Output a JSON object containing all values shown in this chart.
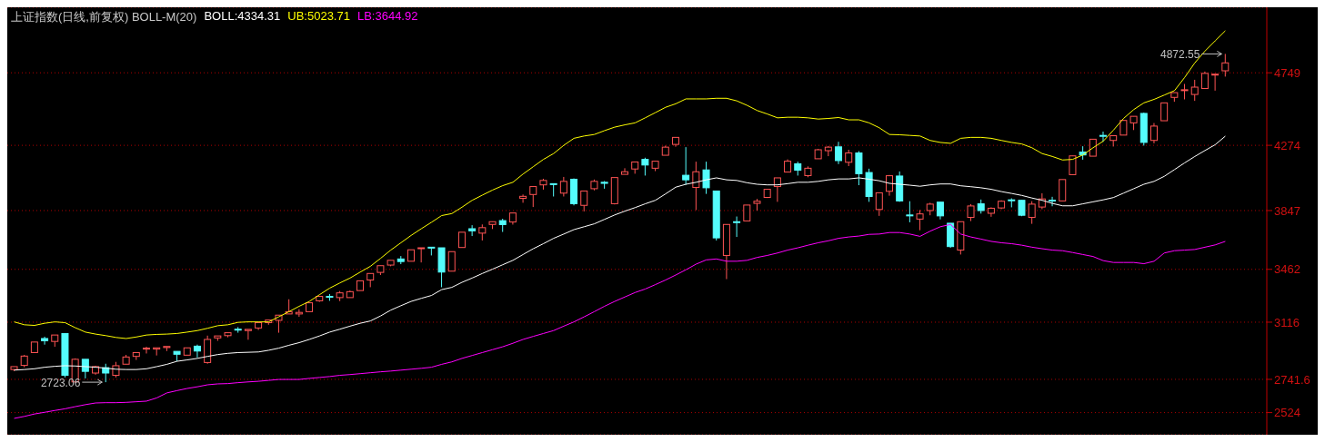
{
  "chart_data": {
    "type": "candlestick",
    "title": "上证指数(日线,前复权) BOLL-M(20)",
    "categories": [
      null,
      null,
      null,
      null,
      null,
      null,
      null,
      null,
      null,
      null,
      null,
      null,
      null,
      null,
      null,
      null,
      null,
      null,
      null,
      null,
      null,
      null,
      null,
      null,
      null,
      null,
      null,
      null,
      null,
      null,
      null,
      null,
      null,
      null,
      null,
      null,
      null,
      null,
      null,
      null,
      null,
      null,
      null,
      null,
      null,
      null,
      null,
      null,
      null,
      null,
      null,
      null,
      null,
      null,
      null,
      null,
      null,
      null,
      null,
      null,
      null,
      null,
      null,
      null,
      null,
      null,
      null,
      null,
      null,
      null,
      null,
      null,
      null,
      null,
      null,
      null,
      null,
      null,
      null,
      null,
      null,
      null,
      null,
      null,
      null,
      null,
      null,
      null,
      null,
      null,
      null,
      null,
      null,
      null,
      null,
      null,
      null,
      null,
      null,
      null,
      null,
      null,
      null,
      null,
      null,
      null,
      null,
      null,
      null,
      null,
      null,
      null,
      null,
      null,
      null,
      null,
      null,
      null,
      null,
      null
    ],
    "ohlc": [
      [
        2806,
        2825,
        2796,
        2825
      ],
      [
        2833,
        2902,
        2821,
        2894
      ],
      [
        2917,
        2986,
        2917,
        2986
      ],
      [
        3009,
        3021,
        2969,
        2994
      ],
      [
        2990,
        3032,
        2955,
        3032
      ],
      [
        3042,
        3042,
        2754,
        2768
      ],
      [
        2725,
        2879,
        2725,
        2873
      ],
      [
        2873,
        2873,
        2748,
        2794
      ],
      [
        2783,
        2831,
        2772,
        2825
      ],
      [
        2818,
        2844,
        2723.06,
        2783
      ],
      [
        2768,
        2856,
        2754,
        2831
      ],
      [
        2841,
        2902,
        2841,
        2888
      ],
      [
        2892,
        2917,
        2869,
        2917
      ],
      [
        2942,
        2955,
        2911,
        2946
      ],
      [
        2940,
        2948,
        2898,
        2948
      ],
      [
        2950,
        2957,
        2927,
        2957
      ],
      [
        2925,
        2925,
        2860,
        2906
      ],
      [
        2900,
        2948,
        2900,
        2948
      ],
      [
        2959,
        2969,
        2885,
        2927
      ],
      [
        2852,
        3028,
        2844,
        3003
      ],
      [
        3013,
        3026,
        2994,
        3026
      ],
      [
        3028,
        3047,
        3017,
        3047
      ],
      [
        3070,
        3084,
        3047,
        3065
      ],
      [
        3061,
        3069,
        3001,
        3069
      ],
      [
        3078,
        3113,
        3065,
        3113
      ],
      [
        3113,
        3130,
        3099,
        3130
      ],
      [
        3128,
        3162,
        3047,
        3162
      ],
      [
        3170,
        3266,
        3170,
        3185
      ],
      [
        3170,
        3201,
        3151,
        3180
      ],
      [
        3185,
        3243,
        3185,
        3243
      ],
      [
        3256,
        3285,
        3249,
        3285
      ],
      [
        3285,
        3300,
        3256,
        3281
      ],
      [
        3277,
        3320,
        3254,
        3308
      ],
      [
        3277,
        3323,
        3277,
        3316
      ],
      [
        3323,
        3387,
        3323,
        3387
      ],
      [
        3392,
        3435,
        3345,
        3435
      ],
      [
        3442,
        3486,
        3425,
        3486
      ],
      [
        3490,
        3521,
        3482,
        3521
      ],
      [
        3530,
        3549,
        3496,
        3513
      ],
      [
        3515,
        3590,
        3515,
        3590
      ],
      [
        3597,
        3603,
        3507,
        3603
      ],
      [
        3607,
        3607,
        3553,
        3603
      ],
      [
        3603,
        3603,
        3345,
        3444
      ],
      [
        3450,
        3578,
        3450,
        3578
      ],
      [
        3605,
        3705,
        3605,
        3705
      ],
      [
        3728,
        3751,
        3680,
        3714
      ],
      [
        3699,
        3756,
        3651,
        3735
      ],
      [
        3756,
        3774,
        3726,
        3774
      ],
      [
        3781,
        3793,
        3707,
        3755
      ],
      [
        3772,
        3831,
        3755,
        3831
      ],
      [
        3927,
        3952,
        3898,
        3940
      ],
      [
        3952,
        4004,
        3870,
        4004
      ],
      [
        4015,
        4055,
        3984,
        4044
      ],
      [
        4023,
        4023,
        3939,
        4019
      ],
      [
        3961,
        4067,
        3939,
        4038
      ],
      [
        4052,
        4057,
        3881,
        3892
      ],
      [
        3881,
        3975,
        3841,
        3975
      ],
      [
        3990,
        4050,
        3979,
        4038
      ],
      [
        4032,
        4040,
        3990,
        4025
      ],
      [
        3892,
        4063,
        3887,
        4063
      ],
      [
        4084,
        4124,
        4084,
        4101
      ],
      [
        4119,
        4165,
        4088,
        4165
      ],
      [
        4182,
        4193,
        4076,
        4145
      ],
      [
        4124,
        4170,
        4105,
        4170
      ],
      [
        4209,
        4272,
        4209,
        4262
      ],
      [
        4280,
        4326,
        4265,
        4326
      ],
      [
        4078,
        4262,
        4015,
        4048
      ],
      [
        3998,
        4167,
        3850,
        4101
      ],
      [
        4113,
        4167,
        3956,
        3996
      ],
      [
        3975,
        3975,
        3651,
        3668
      ],
      [
        3553,
        3756,
        3398,
        3756
      ],
      [
        3774,
        3808,
        3674,
        3770
      ],
      [
        3779,
        3883,
        3779,
        3883
      ],
      [
        3894,
        3923,
        3847,
        3908
      ],
      [
        3933,
        3986,
        3929,
        3986
      ],
      [
        4004,
        4061,
        3904,
        4061
      ],
      [
        4099,
        4182,
        4099,
        4170
      ],
      [
        4153,
        4167,
        4076,
        4111
      ],
      [
        4076,
        4136,
        4065,
        4124
      ],
      [
        4186,
        4251,
        4186,
        4245
      ],
      [
        4239,
        4270,
        4203,
        4262
      ],
      [
        4264,
        4297,
        4151,
        4174
      ],
      [
        4163,
        4245,
        4138,
        4224
      ],
      [
        4224,
        4236,
        4013,
        4088
      ],
      [
        4096,
        4121,
        3904,
        3939
      ],
      [
        3854,
        3963,
        3812,
        3963
      ],
      [
        3973,
        4080,
        3944,
        4075
      ],
      [
        4073,
        4103,
        3904,
        3910
      ],
      [
        3818,
        3908,
        3770,
        3814
      ],
      [
        3791,
        3850,
        3718,
        3825
      ],
      [
        3847,
        3898,
        3816,
        3889
      ],
      [
        3902,
        3902,
        3789,
        3812
      ],
      [
        3764,
        3764,
        3603,
        3611
      ],
      [
        3588,
        3774,
        3559,
        3774
      ],
      [
        3802,
        3889,
        3778,
        3877
      ],
      [
        3891,
        3919,
        3827,
        3847
      ],
      [
        3829,
        3868,
        3806,
        3862
      ],
      [
        3864,
        3914,
        3856,
        3908
      ],
      [
        3917,
        3927,
        3868,
        3914
      ],
      [
        3914,
        3914,
        3810,
        3816
      ],
      [
        3802,
        3908,
        3760,
        3889
      ],
      [
        3870,
        3960,
        3856,
        3923
      ],
      [
        3915,
        3937,
        3875,
        3910
      ],
      [
        3910,
        4050,
        3910,
        4050
      ],
      [
        4082,
        4205,
        4082,
        4205
      ],
      [
        4230,
        4268,
        4180,
        4211
      ],
      [
        4203,
        4314,
        4203,
        4314
      ],
      [
        4339,
        4364,
        4297,
        4335
      ],
      [
        4306,
        4337,
        4266,
        4337
      ],
      [
        4341,
        4437,
        4341,
        4437
      ],
      [
        4421,
        4464,
        4374,
        4464
      ],
      [
        4483,
        4488,
        4272,
        4293
      ],
      [
        4306,
        4420,
        4287,
        4400
      ],
      [
        4435,
        4552,
        4435,
        4552
      ],
      [
        4588,
        4619,
        4559,
        4619
      ],
      [
        4634,
        4676,
        4575,
        4638
      ],
      [
        4607,
        4703,
        4565,
        4655
      ],
      [
        4646,
        4757,
        4646,
        4745
      ],
      [
        4736,
        4740,
        4632,
        4740
      ],
      [
        4762,
        4872.55,
        4724,
        4814
      ]
    ],
    "colors": [
      "#ff5454",
      "#ff5454",
      "#ff5454",
      "#54fcfc",
      "#ff5454",
      "#54fcfc",
      "#ff5454",
      "#54fcfc",
      "#ff5454",
      "#54fcfc",
      "#ff5454",
      "#ff5454",
      "#ff5454",
      "#ff5454",
      "#ff5454",
      "#ff5454",
      "#54fcfc",
      "#ff5454",
      "#54fcfc",
      "#ff5454",
      "#ff5454",
      "#ff5454",
      "#54fcfc",
      "#ff5454",
      "#ff5454",
      "#ff5454",
      "#ff5454",
      "#ff5454",
      "#ff5454",
      "#ff5454",
      "#ff5454",
      "#54fcfc",
      "#ff5454",
      "#ff5454",
      "#ff5454",
      "#ff5454",
      "#ff5454",
      "#ff5454",
      "#54fcfc",
      "#ff5454",
      "#ff5454",
      "#54fcfc",
      "#54fcfc",
      "#ff5454",
      "#ff5454",
      "#54fcfc",
      "#ff5454",
      "#ff5454",
      "#54fcfc",
      "#ff5454",
      "#ff5454",
      "#ff5454",
      "#ff5454",
      "#54fcfc",
      "#ff5454",
      "#54fcfc",
      "#ff5454",
      "#ff5454",
      "#54fcfc",
      "#ff5454",
      "#ff5454",
      "#ff5454",
      "#54fcfc",
      "#ff5454",
      "#ff5454",
      "#ff5454",
      "#54fcfc",
      "#ff5454",
      "#54fcfc",
      "#54fcfc",
      "#ff5454",
      "#54fcfc",
      "#ff5454",
      "#ff5454",
      "#ff5454",
      "#ff5454",
      "#ff5454",
      "#54fcfc",
      "#ff5454",
      "#ff5454",
      "#ff5454",
      "#54fcfc",
      "#ff5454",
      "#54fcfc",
      "#54fcfc",
      "#ff5454",
      "#ff5454",
      "#54fcfc",
      "#54fcfc",
      "#ff5454",
      "#ff5454",
      "#54fcfc",
      "#54fcfc",
      "#ff5454",
      "#ff5454",
      "#54fcfc",
      "#ff5454",
      "#ff5454",
      "#54fcfc",
      "#54fcfc",
      "#ff5454",
      "#ff5454",
      "#54fcfc",
      "#ff5454",
      "#ff5454",
      "#54fcfc",
      "#ff5454",
      "#54fcfc",
      "#ff5454",
      "#ff5454",
      "#ff5454",
      "#54fcfc",
      "#ff5454",
      "#ff5454",
      "#ff5454",
      "#ff5454",
      "#ff5454",
      "#ff5454",
      "#ff5454",
      "#ff5454"
    ],
    "series": [
      {
        "type": "line",
        "name": "BOLL:4334.31",
        "color": "#ffffff",
        "values": [
          2802,
          2806,
          2811,
          2821,
          2827,
          2831,
          2829,
          2825,
          2821,
          2815,
          2808,
          2806,
          2806,
          2811,
          2825,
          2840,
          2860,
          2869,
          2879,
          2892,
          2904,
          2912,
          2917,
          2919,
          2921,
          2932,
          2946,
          2965,
          2982,
          3003,
          3026,
          3051,
          3070,
          3090,
          3109,
          3124,
          3157,
          3195,
          3224,
          3252,
          3272,
          3291,
          3329,
          3344,
          3377,
          3405,
          3435,
          3463,
          3492,
          3521,
          3559,
          3597,
          3630,
          3665,
          3693,
          3722,
          3741,
          3760,
          3789,
          3818,
          3843,
          3866,
          3891,
          3914,
          3956,
          4000,
          4019,
          4032,
          4048,
          4061,
          4048,
          4044,
          4029,
          4019,
          4015,
          4015,
          4023,
          4032,
          4032,
          4038,
          4048,
          4054,
          4054,
          4061,
          4052,
          4042,
          4025,
          4019,
          4013,
          4006,
          4015,
          4021,
          4021,
          4009,
          4003,
          3996,
          3986,
          3971,
          3959,
          3946,
          3929,
          3914,
          3894,
          3878,
          3878,
          3891,
          3904,
          3917,
          3932,
          3961,
          3990,
          4019,
          4038,
          4071,
          4115,
          4159,
          4201,
          4240,
          4278,
          4334
        ]
      },
      {
        "type": "line",
        "name": "UB:5023.71",
        "color": "#ffff00",
        "values": [
          3118,
          3099,
          3095,
          3109,
          3118,
          3113,
          3080,
          3051,
          3038,
          3028,
          3016,
          3009,
          3019,
          3032,
          3036,
          3038,
          3042,
          3051,
          3061,
          3076,
          3093,
          3099,
          3115,
          3118,
          3118,
          3118,
          3151,
          3185,
          3220,
          3252,
          3296,
          3339,
          3373,
          3405,
          3444,
          3482,
          3534,
          3588,
          3636,
          3684,
          3728,
          3770,
          3814,
          3827,
          3869,
          3914,
          3948,
          3981,
          4010,
          4032,
          4086,
          4134,
          4182,
          4220,
          4274,
          4320,
          4335,
          4345,
          4370,
          4393,
          4408,
          4421,
          4454,
          4488,
          4523,
          4546,
          4578,
          4578,
          4578,
          4582,
          4582,
          4565,
          4536,
          4502,
          4479,
          4454,
          4458,
          4458,
          4454,
          4446,
          4450,
          4456,
          4441,
          4441,
          4421,
          4389,
          4345,
          4343,
          4339,
          4335,
          4306,
          4293,
          4287,
          4320,
          4326,
          4326,
          4320,
          4306,
          4293,
          4283,
          4258,
          4220,
          4201,
          4178,
          4182,
          4211,
          4258,
          4301,
          4373,
          4450,
          4508,
          4552,
          4575,
          4603,
          4632,
          4718,
          4814,
          4891,
          4958,
          5024
        ]
      },
      {
        "type": "line",
        "name": "LB:3644.92",
        "color": "#ff00ff",
        "values": [
          2486,
          2499,
          2515,
          2526,
          2538,
          2549,
          2563,
          2576,
          2587,
          2589,
          2589,
          2591,
          2595,
          2599,
          2620,
          2653,
          2668,
          2682,
          2693,
          2706,
          2712,
          2714,
          2720,
          2725,
          2729,
          2735,
          2741,
          2741,
          2741,
          2748,
          2754,
          2760,
          2768,
          2773,
          2779,
          2785,
          2791,
          2796,
          2802,
          2808,
          2814,
          2821,
          2840,
          2856,
          2879,
          2898,
          2917,
          2936,
          2955,
          2978,
          3003,
          3023,
          3042,
          3061,
          3090,
          3118,
          3151,
          3185,
          3220,
          3252,
          3281,
          3310,
          3333,
          3362,
          3392,
          3425,
          3459,
          3496,
          3524,
          3530,
          3515,
          3515,
          3521,
          3540,
          3553,
          3569,
          3588,
          3603,
          3620,
          3636,
          3649,
          3665,
          3674,
          3680,
          3691,
          3693,
          3703,
          3703,
          3693,
          3678,
          3712,
          3741,
          3756,
          3693,
          3674,
          3660,
          3645,
          3636,
          3630,
          3620,
          3607,
          3597,
          3588,
          3584,
          3572,
          3559,
          3546,
          3519,
          3507,
          3507,
          3507,
          3499,
          3515,
          3569,
          3584,
          3588,
          3592,
          3607,
          3622,
          3645
        ]
      }
    ],
    "ylim": [
      2379,
      5178
    ],
    "yticks": [
      2524,
      2741.6,
      3116,
      3462,
      3847,
      4274,
      4749
    ],
    "grid": "y",
    "legend": "top left",
    "tick_labels": "y",
    "annotations": [
      "2723.06",
      "4872.55"
    ]
  }
}
